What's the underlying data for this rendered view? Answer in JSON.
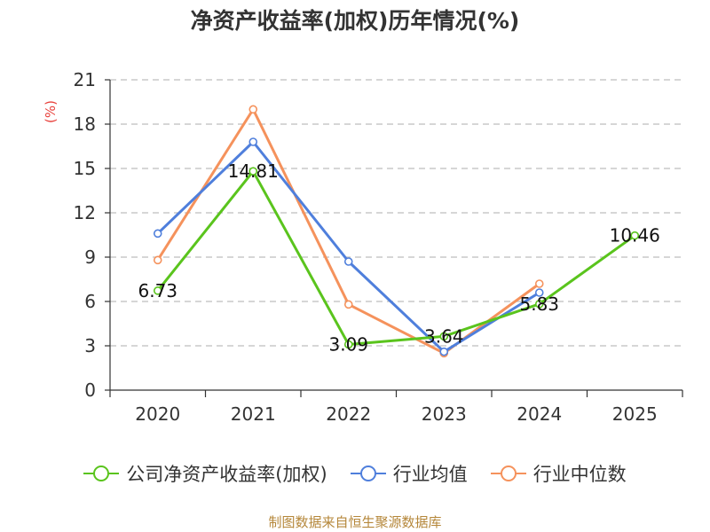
{
  "chart_data": {
    "type": "line",
    "title": "净资产收益率(加权)历年情况(%)",
    "ylabel": "(%)",
    "ylim": [
      0,
      21
    ],
    "yticks": [
      0,
      3,
      6,
      9,
      12,
      15,
      18,
      21
    ],
    "categories": [
      "2020",
      "2021",
      "2022",
      "2023",
      "2024",
      "2025"
    ],
    "series": [
      {
        "name": "公司净资产收益率(加权)",
        "color": "#5ac41d",
        "values": [
          6.73,
          14.81,
          3.09,
          3.64,
          5.83,
          10.46
        ],
        "labels": [
          "6.73",
          "14.81",
          "3.09",
          "3.64",
          "5.83",
          "10.46"
        ]
      },
      {
        "name": "行业均值",
        "color": "#4f7fdc",
        "values": [
          10.6,
          16.8,
          8.7,
          2.6,
          6.6,
          null
        ]
      },
      {
        "name": "行业中位数",
        "color": "#f5925c",
        "values": [
          8.8,
          19.0,
          5.8,
          2.5,
          7.2,
          null
        ]
      }
    ]
  },
  "source": "制图数据来自恒生聚源数据库"
}
